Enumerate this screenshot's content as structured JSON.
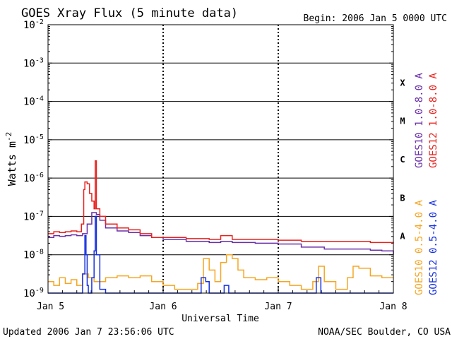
{
  "chart_data": {
    "type": "line",
    "title": "GOES Xray Flux (5 minute data)",
    "begin_label": "Begin:  2006 Jan 5 0000 UTC",
    "xlabel": "Universal Time",
    "ylabel": "Watts m",
    "ylabel_sup": "-2",
    "footer_left": "Updated 2006 Jan  7 23:56:06 UTC",
    "footer_right": "NOAA/SEC Boulder, CO USA",
    "x_range_days": [
      0,
      3
    ],
    "x_ticks": [
      {
        "x": 0,
        "label": "Jan 5"
      },
      {
        "x": 1,
        "label": "Jan 6"
      },
      {
        "x": 2,
        "label": "Jan 7"
      },
      {
        "x": 3,
        "label": "Jan 8"
      }
    ],
    "y_scale": "log",
    "y_range_exp": [
      -9,
      -2
    ],
    "y_ticks": [
      {
        "exp": -2,
        "label": "-2"
      },
      {
        "exp": -3,
        "label": "-3"
      },
      {
        "exp": -4,
        "label": "-4"
      },
      {
        "exp": -5,
        "label": "-5"
      },
      {
        "exp": -6,
        "label": "-6"
      },
      {
        "exp": -7,
        "label": "-7"
      },
      {
        "exp": -8,
        "label": "-8"
      },
      {
        "exp": -9,
        "label": "-9"
      }
    ],
    "flare_classes": [
      {
        "label": "X",
        "exp": -3.5
      },
      {
        "label": "M",
        "exp": -4.5
      },
      {
        "label": "C",
        "exp": -5.5
      },
      {
        "label": "B",
        "exp": -6.5
      },
      {
        "label": "A",
        "exp": -7.5
      }
    ],
    "series": [
      {
        "name": "GOES10 1.0-8.0 A",
        "color": "#6a2fa8",
        "points": [
          [
            0,
            -7.55
          ],
          [
            0.05,
            -7.5
          ],
          [
            0.1,
            -7.52
          ],
          [
            0.15,
            -7.5
          ],
          [
            0.2,
            -7.48
          ],
          [
            0.25,
            -7.5
          ],
          [
            0.3,
            -7.45
          ],
          [
            0.34,
            -7.2
          ],
          [
            0.38,
            -6.9
          ],
          [
            0.42,
            -6.95
          ],
          [
            0.45,
            -7.1
          ],
          [
            0.5,
            -7.3
          ],
          [
            0.6,
            -7.38
          ],
          [
            0.7,
            -7.42
          ],
          [
            0.8,
            -7.5
          ],
          [
            0.9,
            -7.55
          ],
          [
            1.0,
            -7.6
          ],
          [
            1.2,
            -7.65
          ],
          [
            1.4,
            -7.68
          ],
          [
            1.5,
            -7.65
          ],
          [
            1.6,
            -7.68
          ],
          [
            1.8,
            -7.7
          ],
          [
            2.0,
            -7.72
          ],
          [
            2.2,
            -7.8
          ],
          [
            2.4,
            -7.85
          ],
          [
            2.6,
            -7.85
          ],
          [
            2.8,
            -7.88
          ],
          [
            2.9,
            -7.9
          ],
          [
            3.0,
            -8.0
          ]
        ]
      },
      {
        "name": "GOES12 1.0-8.0 A",
        "color": "#e8221e",
        "points": [
          [
            0,
            -7.45
          ],
          [
            0.05,
            -7.4
          ],
          [
            0.1,
            -7.42
          ],
          [
            0.15,
            -7.4
          ],
          [
            0.2,
            -7.38
          ],
          [
            0.25,
            -7.4
          ],
          [
            0.29,
            -7.2
          ],
          [
            0.31,
            -6.3
          ],
          [
            0.32,
            -6.1
          ],
          [
            0.34,
            -6.15
          ],
          [
            0.36,
            -6.4
          ],
          [
            0.38,
            -6.6
          ],
          [
            0.4,
            -6.8
          ],
          [
            0.41,
            -5.55
          ],
          [
            0.42,
            -6.8
          ],
          [
            0.45,
            -7.0
          ],
          [
            0.5,
            -7.2
          ],
          [
            0.6,
            -7.3
          ],
          [
            0.7,
            -7.35
          ],
          [
            0.8,
            -7.45
          ],
          [
            0.9,
            -7.55
          ],
          [
            1.0,
            -7.55
          ],
          [
            1.2,
            -7.58
          ],
          [
            1.4,
            -7.6
          ],
          [
            1.5,
            -7.5
          ],
          [
            1.6,
            -7.6
          ],
          [
            1.8,
            -7.6
          ],
          [
            2.0,
            -7.62
          ],
          [
            2.2,
            -7.65
          ],
          [
            2.4,
            -7.65
          ],
          [
            2.6,
            -7.65
          ],
          [
            2.8,
            -7.68
          ],
          [
            3.0,
            -7.7
          ]
        ]
      },
      {
        "name": "GOES10 0.5-4.0 A",
        "color": "#f5a623",
        "points": [
          [
            0,
            -8.7
          ],
          [
            0.05,
            -8.8
          ],
          [
            0.1,
            -8.6
          ],
          [
            0.15,
            -8.75
          ],
          [
            0.2,
            -8.65
          ],
          [
            0.25,
            -8.8
          ],
          [
            0.3,
            -8.5
          ],
          [
            0.35,
            -8.6
          ],
          [
            0.4,
            -8.7
          ],
          [
            0.5,
            -8.6
          ],
          [
            0.6,
            -8.55
          ],
          [
            0.7,
            -8.6
          ],
          [
            0.8,
            -8.55
          ],
          [
            0.9,
            -8.7
          ],
          [
            1.0,
            -8.8
          ],
          [
            1.1,
            -8.9
          ],
          [
            1.2,
            -8.9
          ],
          [
            1.3,
            -8.75
          ],
          [
            1.35,
            -8.1
          ],
          [
            1.4,
            -8.4
          ],
          [
            1.45,
            -8.7
          ],
          [
            1.5,
            -8.2
          ],
          [
            1.55,
            -8.0
          ],
          [
            1.6,
            -8.1
          ],
          [
            1.65,
            -8.4
          ],
          [
            1.7,
            -8.6
          ],
          [
            1.8,
            -8.65
          ],
          [
            1.9,
            -8.6
          ],
          [
            2.0,
            -8.7
          ],
          [
            2.1,
            -8.8
          ],
          [
            2.2,
            -8.9
          ],
          [
            2.3,
            -8.7
          ],
          [
            2.35,
            -8.3
          ],
          [
            2.4,
            -8.7
          ],
          [
            2.5,
            -8.9
          ],
          [
            2.6,
            -8.6
          ],
          [
            2.65,
            -8.3
          ],
          [
            2.7,
            -8.35
          ],
          [
            2.8,
            -8.55
          ],
          [
            2.9,
            -8.6
          ],
          [
            3.0,
            -8.6
          ]
        ]
      },
      {
        "name": "GOES12 0.5-4.0 A",
        "color": "#1530e0",
        "points": [
          [
            0,
            -9.0
          ],
          [
            0.2,
            -9.0
          ],
          [
            0.28,
            -9.0
          ],
          [
            0.3,
            -8.5
          ],
          [
            0.32,
            -7.5
          ],
          [
            0.33,
            -8.0
          ],
          [
            0.34,
            -8.8
          ],
          [
            0.35,
            -9.0
          ],
          [
            0.38,
            -8.6
          ],
          [
            0.4,
            -7.9
          ],
          [
            0.41,
            -7.0
          ],
          [
            0.42,
            -8.0
          ],
          [
            0.45,
            -8.9
          ],
          [
            0.5,
            -9.0
          ],
          [
            1.0,
            -9.0
          ],
          [
            1.3,
            -9.0
          ],
          [
            1.33,
            -8.6
          ],
          [
            1.37,
            -8.7
          ],
          [
            1.4,
            -9.0
          ],
          [
            1.5,
            -9.0
          ],
          [
            1.53,
            -8.8
          ],
          [
            1.57,
            -9.0
          ],
          [
            2.0,
            -9.0
          ],
          [
            2.3,
            -9.0
          ],
          [
            2.33,
            -8.6
          ],
          [
            2.37,
            -9.0
          ],
          [
            3.0,
            -9.0
          ]
        ]
      }
    ]
  }
}
